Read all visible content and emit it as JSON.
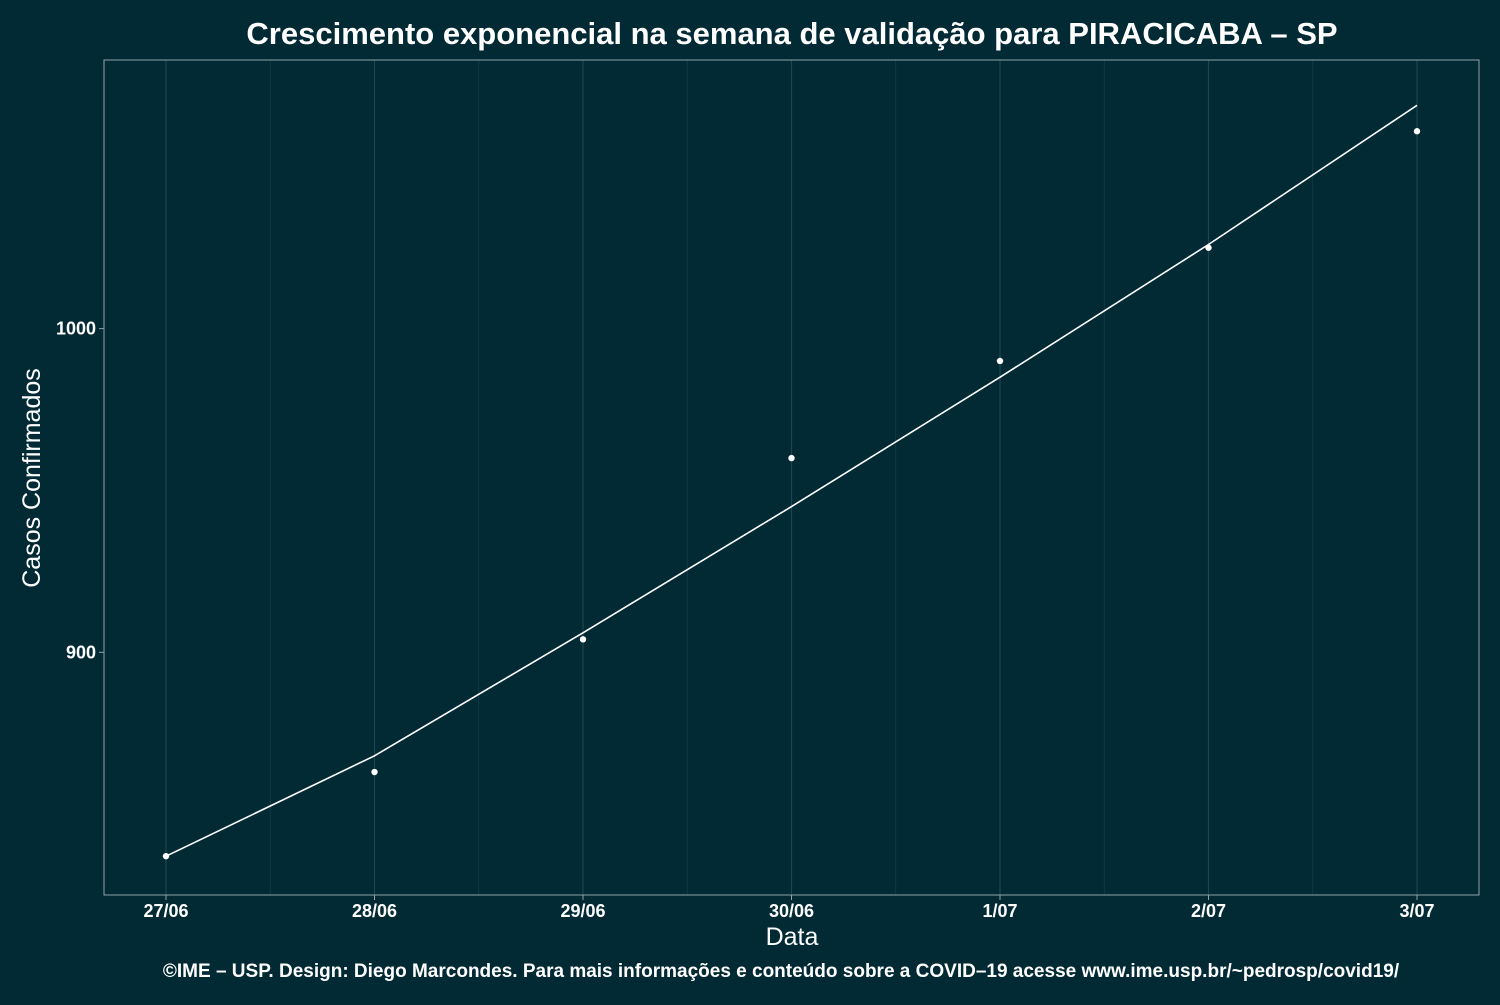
{
  "chart_data": {
    "type": "scatter",
    "title": "Crescimento exponencial na semana de validação para PIRACICABA – SP",
    "xlabel": "Data",
    "ylabel": "Casos Confirmados",
    "categories": [
      "27/06",
      "28/06",
      "29/06",
      "30/06",
      "1/07",
      "2/07",
      "3/07"
    ],
    "ylim": [
      825,
      1083
    ],
    "yticks": [
      900,
      1000
    ],
    "series": [
      {
        "kind": "points",
        "values": [
          837,
          863,
          904,
          960,
          990,
          1025,
          1061
        ]
      },
      {
        "kind": "fit-line",
        "values": [
          837,
          868,
          906,
          945,
          985,
          1026,
          1069
        ]
      }
    ],
    "grid": true,
    "legend": "none",
    "caption": "©IME – USP. Design: Diego Marcondes. Para mais informações e conteúdo sobre a COVID–19 acesse www.ime.usp.br/~pedrosp/covid19/",
    "colors": {
      "background": "#022a35",
      "panel": "#022a35",
      "grid": "#1d4550",
      "axis": "#8fa3a8",
      "points": "#ffffff",
      "line": "#ffffff",
      "text": "#ffffff"
    }
  }
}
